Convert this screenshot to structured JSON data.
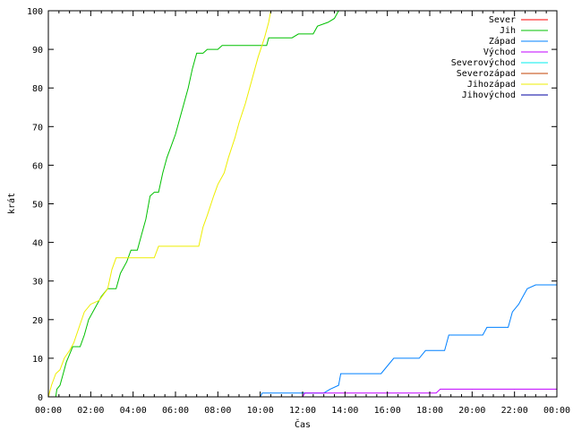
{
  "chart_data": {
    "type": "line",
    "title": "",
    "xlabel": "Čas",
    "ylabel": "krát",
    "xlim": [
      0,
      24
    ],
    "ylim": [
      0,
      100
    ],
    "x_ticks": [
      {
        "value": 0,
        "label": "00:00"
      },
      {
        "value": 2,
        "label": "02:00"
      },
      {
        "value": 4,
        "label": "04:00"
      },
      {
        "value": 6,
        "label": "06:00"
      },
      {
        "value": 8,
        "label": "08:00"
      },
      {
        "value": 10,
        "label": "10:00"
      },
      {
        "value": 12,
        "label": "12:00"
      },
      {
        "value": 14,
        "label": "14:00"
      },
      {
        "value": 16,
        "label": "16:00"
      },
      {
        "value": 18,
        "label": "18:00"
      },
      {
        "value": 20,
        "label": "20:00"
      },
      {
        "value": 22,
        "label": "22:00"
      },
      {
        "value": 24,
        "label": "00:00"
      }
    ],
    "y_ticks": [
      0,
      10,
      20,
      30,
      40,
      50,
      60,
      70,
      80,
      90,
      100
    ],
    "grid": false,
    "legend_position": "top-right",
    "series": [
      {
        "name": "Sever",
        "color": "#ff0000",
        "points": []
      },
      {
        "name": "Jih",
        "color": "#00c000",
        "points": [
          [
            0.0,
            0
          ],
          [
            0.35,
            0
          ],
          [
            0.4,
            2
          ],
          [
            0.55,
            3
          ],
          [
            0.7,
            6
          ],
          [
            0.85,
            9
          ],
          [
            1.0,
            11
          ],
          [
            1.15,
            13
          ],
          [
            1.5,
            13
          ],
          [
            1.7,
            16
          ],
          [
            1.9,
            20
          ],
          [
            2.2,
            23
          ],
          [
            2.5,
            26
          ],
          [
            2.8,
            28
          ],
          [
            3.2,
            28
          ],
          [
            3.4,
            32
          ],
          [
            3.7,
            35
          ],
          [
            3.9,
            38
          ],
          [
            4.2,
            38
          ],
          [
            4.4,
            42
          ],
          [
            4.6,
            46
          ],
          [
            4.8,
            52
          ],
          [
            5.0,
            53
          ],
          [
            5.2,
            53
          ],
          [
            5.4,
            58
          ],
          [
            5.6,
            62
          ],
          [
            5.8,
            65
          ],
          [
            6.0,
            68
          ],
          [
            6.2,
            72
          ],
          [
            6.4,
            76
          ],
          [
            6.6,
            80
          ],
          [
            6.8,
            85
          ],
          [
            7.0,
            89
          ],
          [
            7.3,
            89
          ],
          [
            7.5,
            90
          ],
          [
            8.0,
            90
          ],
          [
            8.2,
            91
          ],
          [
            10.3,
            91
          ],
          [
            10.4,
            93
          ],
          [
            11.5,
            93
          ],
          [
            11.8,
            94
          ],
          [
            12.5,
            94
          ],
          [
            12.7,
            96
          ],
          [
            13.2,
            97
          ],
          [
            13.5,
            98
          ],
          [
            13.7,
            100
          ]
        ]
      },
      {
        "name": "Západ",
        "color": "#0080ff",
        "points": [
          [
            0.0,
            0
          ],
          [
            10.0,
            0
          ],
          [
            10.1,
            1
          ],
          [
            12.0,
            1
          ],
          [
            12.4,
            1
          ],
          [
            13.0,
            1
          ],
          [
            13.3,
            2
          ],
          [
            13.7,
            3
          ],
          [
            13.8,
            6
          ],
          [
            15.7,
            6
          ],
          [
            16.0,
            8
          ],
          [
            16.3,
            10
          ],
          [
            17.5,
            10
          ],
          [
            17.8,
            12
          ],
          [
            18.7,
            12
          ],
          [
            18.9,
            16
          ],
          [
            20.5,
            16
          ],
          [
            20.7,
            18
          ],
          [
            21.7,
            18
          ],
          [
            21.9,
            22
          ],
          [
            22.2,
            24
          ],
          [
            22.4,
            26
          ],
          [
            22.6,
            28
          ],
          [
            23.0,
            29
          ],
          [
            24.0,
            29
          ]
        ]
      },
      {
        "name": "Východ",
        "color": "#c000ff",
        "points": [
          [
            12.0,
            0
          ],
          [
            12.1,
            1
          ],
          [
            18.3,
            1
          ],
          [
            18.5,
            2
          ],
          [
            24.0,
            2
          ]
        ]
      },
      {
        "name": "Severovýchod",
        "color": "#00eeee",
        "points": []
      },
      {
        "name": "Severozápad",
        "color": "#c04000",
        "points": []
      },
      {
        "name": "Jihozápad",
        "color": "#eeee00",
        "points": [
          [
            0.0,
            0
          ],
          [
            0.15,
            3
          ],
          [
            0.35,
            6
          ],
          [
            0.55,
            7
          ],
          [
            0.75,
            10
          ],
          [
            1.0,
            12
          ],
          [
            1.2,
            14
          ],
          [
            1.45,
            18
          ],
          [
            1.7,
            22
          ],
          [
            2.0,
            24
          ],
          [
            2.4,
            25
          ],
          [
            2.8,
            28
          ],
          [
            3.0,
            33
          ],
          [
            3.2,
            36
          ],
          [
            5.0,
            36
          ],
          [
            5.2,
            39
          ],
          [
            7.1,
            39
          ],
          [
            7.3,
            44
          ],
          [
            7.5,
            47
          ],
          [
            7.8,
            52
          ],
          [
            8.0,
            55
          ],
          [
            8.3,
            58
          ],
          [
            8.5,
            62
          ],
          [
            8.8,
            67
          ],
          [
            9.0,
            71
          ],
          [
            9.3,
            76
          ],
          [
            9.6,
            82
          ],
          [
            9.9,
            88
          ],
          [
            10.2,
            93
          ],
          [
            10.4,
            97
          ],
          [
            10.5,
            100
          ]
        ]
      },
      {
        "name": "Jihovýchod",
        "color": "#0000a0",
        "points": []
      }
    ]
  }
}
